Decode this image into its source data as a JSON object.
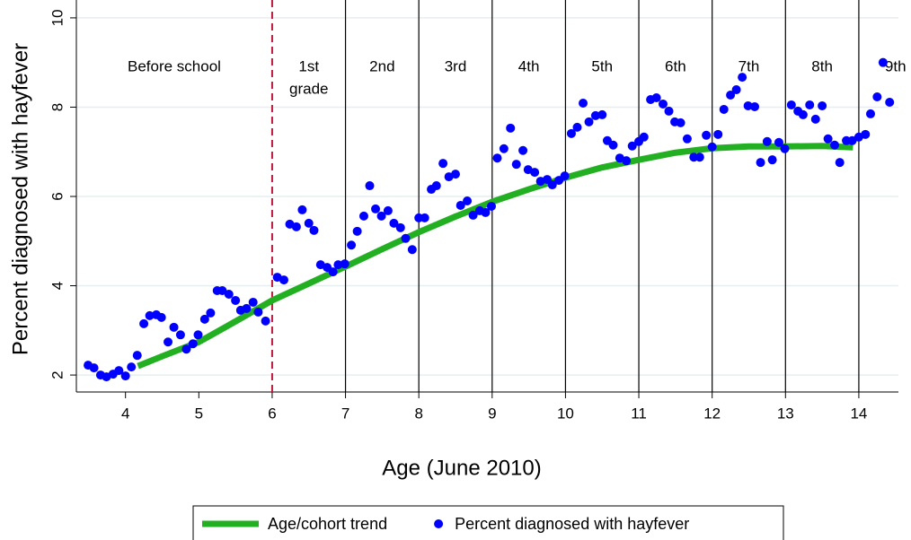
{
  "chart_data": {
    "type": "scatter",
    "x_label": "Age (June 2010)",
    "y_label": "Percent diagnosed with hayfever",
    "xlim": [
      3.33,
      14.54
    ],
    "ylim": [
      1.62,
      10.4
    ],
    "xticks": [
      4,
      5,
      6,
      7,
      8,
      9,
      10,
      11,
      12,
      13,
      14
    ],
    "yticks": [
      2,
      4,
      6,
      8,
      10
    ],
    "grid": true,
    "grid_color": "#e6eef0",
    "dividers": [
      {
        "value": 6,
        "color": "#c0183c",
        "dashed": true
      },
      {
        "value": 7,
        "color": "#000000",
        "dashed": false
      },
      {
        "value": 8,
        "color": "#000000",
        "dashed": false
      },
      {
        "value": 9,
        "color": "#000000",
        "dashed": false
      },
      {
        "value": 10,
        "color": "#000000",
        "dashed": false
      },
      {
        "value": 11,
        "color": "#000000",
        "dashed": false
      },
      {
        "value": 12,
        "color": "#000000",
        "dashed": false
      },
      {
        "value": 13,
        "color": "#000000",
        "dashed": false
      },
      {
        "value": 14,
        "color": "#000000",
        "dashed": false
      }
    ],
    "regions": [
      {
        "lines": [
          "Before school"
        ]
      },
      {
        "lines": [
          "1st",
          "grade"
        ]
      },
      {
        "lines": [
          "2nd"
        ]
      },
      {
        "lines": [
          "3rd"
        ]
      },
      {
        "lines": [
          "4th"
        ]
      },
      {
        "lines": [
          "5th"
        ]
      },
      {
        "lines": [
          "6th"
        ]
      },
      {
        "lines": [
          "7th"
        ]
      },
      {
        "lines": [
          "8th"
        ]
      },
      {
        "lines": [
          "9th"
        ]
      }
    ],
    "series": [
      {
        "name": "Age/cohort trend",
        "type": "line",
        "color": "#22b022",
        "x": [
          4.17,
          4.5,
          5,
          5.5,
          6,
          6.5,
          7,
          7.5,
          8,
          8.5,
          9,
          9.5,
          10,
          10.5,
          11,
          11.5,
          12,
          12.5,
          13,
          13.5,
          13.92
        ],
        "values": [
          2.2,
          2.42,
          2.74,
          3.2,
          3.67,
          4.05,
          4.43,
          4.82,
          5.2,
          5.55,
          5.88,
          6.16,
          6.42,
          6.65,
          6.82,
          6.98,
          7.08,
          7.12,
          7.12,
          7.13,
          7.1
        ]
      },
      {
        "name": "Percent diagnosed with hayfever",
        "type": "scatter",
        "color": "#0000ff",
        "x": [
          3.49,
          3.57,
          3.66,
          3.74,
          3.83,
          3.91,
          4.0,
          4.08,
          4.16,
          4.25,
          4.33,
          4.42,
          4.49,
          4.58,
          4.66,
          4.75,
          4.83,
          4.92,
          4.99,
          5.08,
          5.16,
          5.25,
          5.32,
          5.41,
          5.5,
          5.57,
          5.65,
          5.74,
          5.81,
          5.91,
          6.07,
          6.16,
          6.24,
          6.33,
          6.41,
          6.5,
          6.57,
          6.66,
          6.75,
          6.83,
          6.9,
          6.99,
          7.08,
          7.16,
          7.25,
          7.33,
          7.41,
          7.49,
          7.58,
          7.66,
          7.75,
          7.82,
          7.91,
          8.0,
          8.08,
          8.17,
          8.24,
          8.33,
          8.41,
          8.5,
          8.57,
          8.66,
          8.74,
          8.83,
          8.91,
          8.99,
          9.07,
          9.16,
          9.25,
          9.33,
          9.42,
          9.49,
          9.58,
          9.66,
          9.75,
          9.82,
          9.91,
          9.99,
          10.08,
          10.16,
          10.24,
          10.32,
          10.41,
          10.5,
          10.57,
          10.65,
          10.74,
          10.83,
          10.91,
          11.0,
          11.07,
          11.16,
          11.24,
          11.33,
          11.41,
          11.49,
          11.57,
          11.66,
          11.75,
          11.83,
          11.92,
          12.0,
          12.08,
          12.16,
          12.25,
          12.33,
          12.41,
          12.49,
          12.58,
          12.66,
          12.75,
          12.82,
          12.91,
          12.99,
          13.08,
          13.17,
          13.24,
          13.33,
          13.41,
          13.5,
          13.58,
          13.67,
          13.74,
          13.83,
          13.91,
          14.0,
          14.09,
          14.16,
          14.25,
          14.33,
          14.42
        ],
        "values": [
          2.22,
          2.16,
          2.0,
          1.96,
          2.02,
          2.1,
          1.98,
          2.18,
          2.44,
          3.15,
          3.33,
          3.35,
          3.29,
          2.74,
          3.07,
          2.9,
          2.58,
          2.7,
          2.9,
          3.25,
          3.39,
          3.89,
          3.89,
          3.81,
          3.67,
          3.45,
          3.49,
          3.63,
          3.41,
          3.21,
          4.19,
          4.13,
          5.38,
          5.32,
          5.7,
          5.4,
          5.24,
          4.47,
          4.41,
          4.31,
          4.47,
          4.49,
          4.91,
          5.22,
          5.56,
          6.24,
          5.72,
          5.56,
          5.68,
          5.4,
          5.3,
          5.06,
          4.81,
          5.52,
          5.52,
          6.16,
          6.24,
          6.74,
          6.44,
          6.5,
          5.8,
          5.9,
          5.58,
          5.68,
          5.64,
          5.78,
          6.86,
          7.07,
          7.53,
          6.72,
          7.03,
          6.6,
          6.54,
          6.34,
          6.38,
          6.26,
          6.36,
          6.46,
          7.41,
          7.55,
          8.09,
          7.67,
          7.81,
          7.83,
          7.25,
          7.15,
          6.86,
          6.8,
          7.13,
          7.23,
          7.33,
          8.17,
          8.21,
          8.07,
          7.91,
          7.67,
          7.65,
          7.29,
          6.88,
          6.88,
          7.37,
          7.11,
          7.39,
          7.95,
          8.27,
          8.39,
          8.67,
          8.03,
          8.01,
          6.76,
          7.23,
          6.82,
          7.21,
          7.07,
          8.05,
          7.91,
          7.83,
          8.05,
          7.73,
          8.03,
          7.29,
          7.15,
          6.76,
          7.25,
          7.25,
          7.33,
          7.39,
          7.85,
          8.23,
          9.0,
          8.11
        ]
      }
    ]
  }
}
